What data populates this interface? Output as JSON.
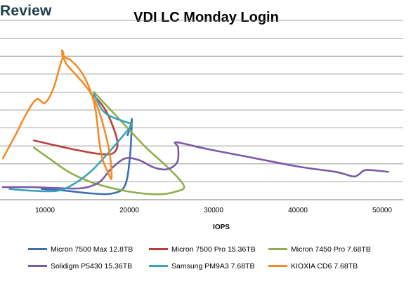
{
  "brand": "Review",
  "chart_data": {
    "type": "line",
    "title": "VDI LC Monday Login",
    "xlabel": "IOPS",
    "ylabel": "",
    "x_ticks": [
      "10000",
      "20000",
      "30000",
      "40000",
      "50000"
    ],
    "xlim": [
      5000,
      52500
    ],
    "ylim": [
      0,
      10
    ],
    "y_gridlines": [
      1,
      2,
      3,
      4,
      5,
      6,
      7,
      8,
      9,
      10
    ],
    "grid": true,
    "legend_position": "bottom",
    "series": [
      {
        "name": "Micron 7500 Max 12.8TB",
        "color": "#3c6eb4",
        "points": [
          [
            9600,
            0.6
          ],
          [
            12500,
            0.5
          ],
          [
            15500,
            0.35
          ],
          [
            18000,
            0.35
          ],
          [
            19500,
            0.8
          ],
          [
            20100,
            2.5
          ],
          [
            20300,
            4.4
          ],
          [
            20200,
            4.2
          ],
          [
            19800,
            3.6
          ]
        ]
      },
      {
        "name": "Micron 7500 Pro 15.36TB",
        "color": "#b8403b",
        "points": [
          [
            8700,
            3.3
          ],
          [
            11500,
            3.0
          ],
          [
            14000,
            2.75
          ],
          [
            16500,
            2.55
          ],
          [
            18100,
            2.6
          ],
          [
            18600,
            3.2
          ],
          [
            17800,
            4.4
          ],
          [
            16900,
            5.2
          ],
          [
            15800,
            5.8
          ]
        ]
      },
      {
        "name": "Micron 7450 Pro 7.68TB",
        "color": "#8db04b",
        "points": [
          [
            8700,
            2.9
          ],
          [
            10500,
            2.3
          ],
          [
            13000,
            1.5
          ],
          [
            16000,
            0.9
          ],
          [
            20000,
            0.45
          ],
          [
            23500,
            0.3
          ],
          [
            25500,
            0.45
          ],
          [
            26500,
            0.75
          ],
          [
            24800,
            1.7
          ],
          [
            22000,
            2.9
          ],
          [
            19800,
            4.0
          ],
          [
            17600,
            5.1
          ],
          [
            15800,
            6.0
          ]
        ]
      },
      {
        "name": "Solidigm P5430 15.36TB",
        "color": "#7b5aa6",
        "points": [
          [
            5000,
            0.7
          ],
          [
            8500,
            0.7
          ],
          [
            11500,
            0.65
          ],
          [
            14500,
            0.65
          ],
          [
            16500,
            1.0
          ],
          [
            17800,
            1.7
          ],
          [
            19500,
            2.3
          ],
          [
            21200,
            2.2
          ],
          [
            22900,
            1.8
          ],
          [
            24500,
            1.7
          ],
          [
            25700,
            2.1
          ],
          [
            25800,
            2.9
          ],
          [
            25600,
            3.2
          ],
          [
            29000,
            2.85
          ],
          [
            34500,
            2.35
          ],
          [
            40000,
            1.85
          ],
          [
            44500,
            1.55
          ],
          [
            46500,
            1.3
          ],
          [
            47200,
            1.4
          ],
          [
            48000,
            1.65
          ],
          [
            49800,
            1.6
          ],
          [
            50700,
            1.55
          ]
        ]
      },
      {
        "name": "Samsung PM9A3 7.68TB",
        "color": "#3aa3b9",
        "points": [
          [
            5800,
            0.6
          ],
          [
            8500,
            0.5
          ],
          [
            11500,
            0.5
          ],
          [
            13500,
            0.9
          ],
          [
            15500,
            1.6
          ],
          [
            17500,
            2.6
          ],
          [
            19500,
            3.7
          ],
          [
            20300,
            4.2
          ],
          [
            19800,
            4.3
          ],
          [
            18000,
            4.6
          ],
          [
            16800,
            5.0
          ],
          [
            15800,
            5.9
          ]
        ]
      },
      {
        "name": "KIOXIA CD6 7.68TB",
        "color": "#f28c28",
        "points": [
          [
            5000,
            2.3
          ],
          [
            6500,
            3.6
          ],
          [
            7800,
            4.8
          ],
          [
            9000,
            5.6
          ],
          [
            10000,
            5.4
          ],
          [
            11000,
            6.2
          ],
          [
            11800,
            7.5
          ],
          [
            12200,
            8.1
          ],
          [
            12000,
            8.3
          ],
          [
            12500,
            7.6
          ],
          [
            13800,
            6.9
          ],
          [
            15200,
            6.1
          ],
          [
            16200,
            5.2
          ],
          [
            17000,
            4.0
          ],
          [
            17700,
            2.5
          ],
          [
            17900,
            1.2
          ],
          [
            17500,
            1.5
          ],
          [
            16800,
            2.3
          ],
          [
            16400,
            3.4
          ],
          [
            16000,
            5.0
          ],
          [
            15300,
            6.2
          ],
          [
            14200,
            7.2
          ],
          [
            13000,
            7.8
          ],
          [
            12500,
            7.9
          ],
          [
            12000,
            8.1
          ]
        ]
      }
    ]
  }
}
